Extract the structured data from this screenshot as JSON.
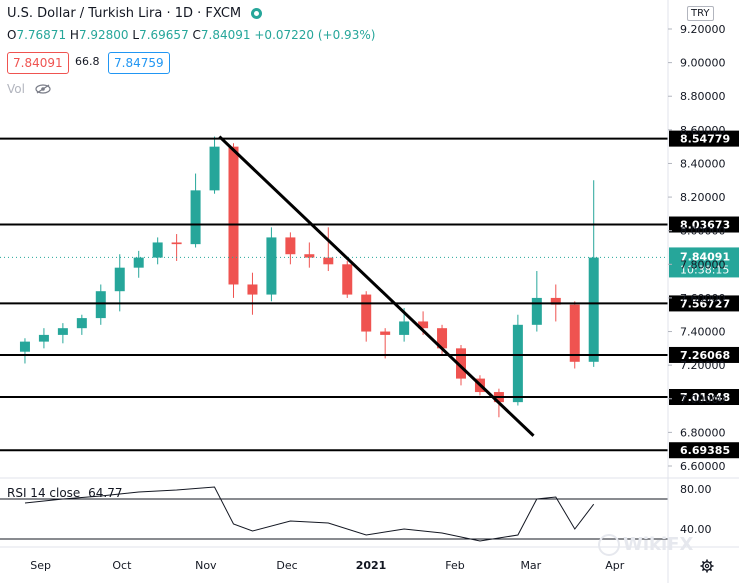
{
  "header": {
    "symbol": "U.S. Dollar / Turkish Lira",
    "interval": "1D",
    "source": "FXCM",
    "ohlc": {
      "o_label": "O",
      "o": "7.76871",
      "h_label": "H",
      "h": "7.92800",
      "l_label": "L",
      "l": "7.69657",
      "c_label": "C",
      "c": "7.84091",
      "change": "+0.07220 (+0.93%)"
    },
    "sell_price": "7.84091",
    "spread": "66.8",
    "buy_price": "7.84759",
    "volume_label": "Vol"
  },
  "currency_tag": "TRY",
  "colors": {
    "up": "#26a69a",
    "down": "#ef5350",
    "drawing": "#000000",
    "grid": "#f0f3fa",
    "axis_text": "#131722",
    "price_tag": "#26a69a"
  },
  "chart_data": [
    {
      "type": "candlestick",
      "title": "",
      "y_axis_ticks": [
        "9.20000",
        "9.00000",
        "8.80000",
        "8.60000",
        "8.40000",
        "8.20000",
        "8.00000",
        "7.80000",
        "7.60000",
        "7.40000",
        "7.20000",
        "7.00000",
        "6.80000",
        "6.60000"
      ],
      "x_axis_ticks": [
        "Sep",
        "Oct",
        "Nov",
        "Dec",
        "2021",
        "Feb",
        "Mar",
        "Apr"
      ],
      "ylim": [
        6.56,
        9.32
      ],
      "horizontal_levels": [
        "8.54779",
        "8.03673",
        "7.56727",
        "7.26068",
        "7.01048",
        "6.69385"
      ],
      "current_price": "7.84091",
      "countdown": "10:38:15",
      "trendline": {
        "start": [
          "2020-11-06",
          8.56
        ],
        "end": [
          "2021-03-02",
          6.78
        ]
      },
      "series": [
        {
          "date": "2020-08-24",
          "o": 7.28,
          "h": 7.36,
          "l": 7.21,
          "c": 7.34
        },
        {
          "date": "2020-08-31",
          "o": 7.34,
          "h": 7.42,
          "l": 7.3,
          "c": 7.38
        },
        {
          "date": "2020-09-07",
          "o": 7.38,
          "h": 7.45,
          "l": 7.33,
          "c": 7.42
        },
        {
          "date": "2020-09-14",
          "o": 7.42,
          "h": 7.5,
          "l": 7.38,
          "c": 7.48
        },
        {
          "date": "2020-09-21",
          "o": 7.48,
          "h": 7.68,
          "l": 7.44,
          "c": 7.64
        },
        {
          "date": "2020-09-28",
          "o": 7.64,
          "h": 7.86,
          "l": 7.52,
          "c": 7.78
        },
        {
          "date": "2020-10-05",
          "o": 7.78,
          "h": 7.88,
          "l": 7.72,
          "c": 7.84
        },
        {
          "date": "2020-10-12",
          "o": 7.84,
          "h": 7.96,
          "l": 7.8,
          "c": 7.93
        },
        {
          "date": "2020-10-19",
          "o": 7.93,
          "h": 7.98,
          "l": 7.82,
          "c": 7.92
        },
        {
          "date": "2020-10-26",
          "o": 7.92,
          "h": 8.34,
          "l": 7.9,
          "c": 8.24
        },
        {
          "date": "2020-11-02",
          "o": 8.24,
          "h": 8.56,
          "l": 8.22,
          "c": 8.5
        },
        {
          "date": "2020-11-09",
          "o": 8.5,
          "h": 8.52,
          "l": 7.6,
          "c": 7.68
        },
        {
          "date": "2020-11-16",
          "o": 7.68,
          "h": 7.75,
          "l": 7.5,
          "c": 7.62
        },
        {
          "date": "2020-11-23",
          "o": 7.62,
          "h": 8.02,
          "l": 7.58,
          "c": 7.96
        },
        {
          "date": "2020-11-30",
          "o": 7.96,
          "h": 7.99,
          "l": 7.8,
          "c": 7.86
        },
        {
          "date": "2020-12-07",
          "o": 7.86,
          "h": 7.93,
          "l": 7.78,
          "c": 7.84
        },
        {
          "date": "2020-12-14",
          "o": 7.84,
          "h": 8.02,
          "l": 7.76,
          "c": 7.8
        },
        {
          "date": "2020-12-21",
          "o": 7.8,
          "h": 7.82,
          "l": 7.6,
          "c": 7.62
        },
        {
          "date": "2020-12-28",
          "o": 7.62,
          "h": 7.64,
          "l": 7.34,
          "c": 7.4
        },
        {
          "date": "2021-01-04",
          "o": 7.4,
          "h": 7.42,
          "l": 7.24,
          "c": 7.38
        },
        {
          "date": "2021-01-11",
          "o": 7.38,
          "h": 7.54,
          "l": 7.34,
          "c": 7.46
        },
        {
          "date": "2021-01-18",
          "o": 7.46,
          "h": 7.52,
          "l": 7.38,
          "c": 7.42
        },
        {
          "date": "2021-01-25",
          "o": 7.42,
          "h": 7.44,
          "l": 7.26,
          "c": 7.3
        },
        {
          "date": "2021-02-01",
          "o": 7.3,
          "h": 7.32,
          "l": 7.08,
          "c": 7.12
        },
        {
          "date": "2021-02-08",
          "o": 7.12,
          "h": 7.14,
          "l": 7.02,
          "c": 7.04
        },
        {
          "date": "2021-02-15",
          "o": 7.04,
          "h": 7.06,
          "l": 6.89,
          "c": 6.98
        },
        {
          "date": "2021-02-22",
          "o": 6.98,
          "h": 7.5,
          "l": 6.96,
          "c": 7.44
        },
        {
          "date": "2021-03-01",
          "o": 7.44,
          "h": 7.76,
          "l": 7.4,
          "c": 7.6
        },
        {
          "date": "2021-03-08",
          "o": 7.6,
          "h": 7.68,
          "l": 7.46,
          "c": 7.56
        },
        {
          "date": "2021-03-15",
          "o": 7.56,
          "h": 7.58,
          "l": 7.18,
          "c": 7.22
        },
        {
          "date": "2021-03-22",
          "o": 7.22,
          "h": 8.3,
          "l": 7.19,
          "c": 7.84
        }
      ]
    },
    {
      "type": "line",
      "title": "RSI 14 close",
      "value_label": "64.77",
      "y_axis_ticks": [
        "80.00",
        "40.00"
      ],
      "ylim": [
        20,
        90
      ],
      "bands": [
        70,
        30
      ],
      "x": [
        "2020-08-24",
        "2020-09-07",
        "2020-09-21",
        "2020-10-05",
        "2020-10-19",
        "2020-11-02",
        "2020-11-09",
        "2020-11-16",
        "2020-11-30",
        "2020-12-14",
        "2020-12-28",
        "2021-01-11",
        "2021-01-25",
        "2021-02-08",
        "2021-02-22",
        "2021-03-01",
        "2021-03-08",
        "2021-03-15",
        "2021-03-22"
      ],
      "y": [
        66,
        70,
        73,
        77,
        79,
        82,
        45,
        38,
        48,
        46,
        34,
        40,
        36,
        28,
        34,
        70,
        72,
        40,
        64.77
      ]
    }
  ],
  "watermark": "WikiFX"
}
